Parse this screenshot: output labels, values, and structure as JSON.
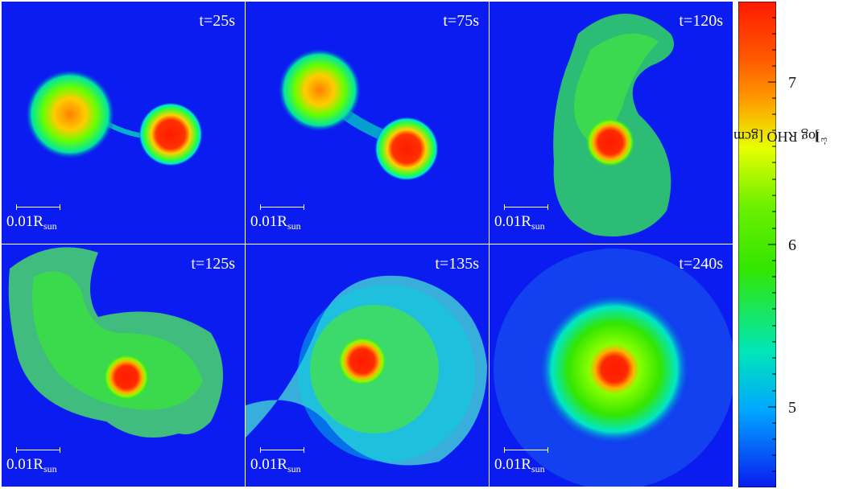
{
  "panels": [
    {
      "time": "t=25s",
      "scale_main": "0.01R",
      "scale_sub": "sun"
    },
    {
      "time": "t=75s",
      "scale_main": "0.01R",
      "scale_sub": "sun"
    },
    {
      "time": "t=120s",
      "scale_main": "0.01R",
      "scale_sub": "sun"
    },
    {
      "time": "t=125s",
      "scale_main": "0.01R",
      "scale_sub": "sun"
    },
    {
      "time": "t=135s",
      "scale_main": "0.01R",
      "scale_sub": "sun"
    },
    {
      "time": "t=240s",
      "scale_main": "0.01R",
      "scale_sub": "sun"
    }
  ],
  "colorbar": {
    "title_main": "log RHO [gcm",
    "title_sup": "-3",
    "title_end": "]",
    "labels": [
      "7",
      "6",
      "5"
    ],
    "colors": [
      "#ff1a00",
      "#ff9a00",
      "#e8ff00",
      "#33e600",
      "#00e6b8",
      "#00a8ff",
      "#0a1cf0"
    ]
  },
  "colors": {
    "background": "#0a1cf0",
    "core": "#ff1a00",
    "envelope": "#33e600",
    "halo": "#00e6e6"
  }
}
